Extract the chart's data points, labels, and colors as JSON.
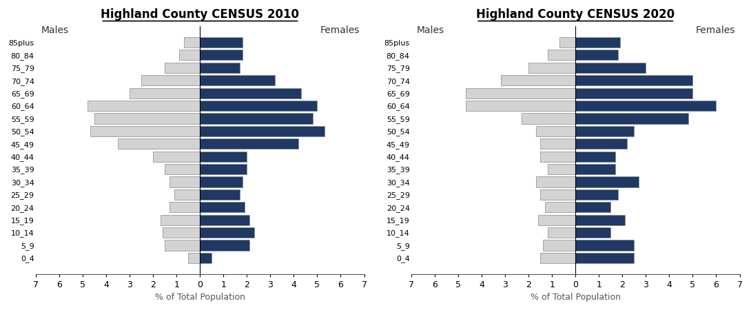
{
  "age_groups": [
    "0_4",
    "5_9",
    "10_14",
    "15_19",
    "20_24",
    "25_29",
    "30_34",
    "35_39",
    "40_44",
    "45_49",
    "50_54",
    "55_59",
    "60_64",
    "65_69",
    "70_74",
    "75_79",
    "80_84",
    "85plus"
  ],
  "chart2010": {
    "title": "Highland County CENSUS 2010",
    "males": [
      0.5,
      1.5,
      1.6,
      1.7,
      1.3,
      1.1,
      1.3,
      1.5,
      2.0,
      3.5,
      4.7,
      4.5,
      4.8,
      3.0,
      2.5,
      1.5,
      0.9,
      0.7
    ],
    "females": [
      0.5,
      2.1,
      2.3,
      2.1,
      1.9,
      1.7,
      1.8,
      2.0,
      2.0,
      4.2,
      5.3,
      4.8,
      5.0,
      4.3,
      3.2,
      1.7,
      1.8,
      1.8
    ]
  },
  "chart2020": {
    "title": "Highland County CENSUS 2020",
    "males": [
      1.5,
      1.4,
      1.2,
      1.6,
      1.3,
      1.5,
      1.7,
      1.2,
      1.5,
      1.5,
      1.7,
      2.3,
      4.7,
      4.7,
      3.2,
      2.0,
      1.2,
      0.7
    ],
    "females": [
      2.5,
      2.5,
      1.5,
      2.1,
      1.5,
      1.8,
      2.7,
      1.7,
      1.7,
      2.2,
      2.5,
      4.8,
      6.0,
      5.0,
      5.0,
      3.0,
      1.8,
      1.9
    ]
  },
  "male_color": "#d3d3d3",
  "female_color": "#1f3864",
  "bar_edge_color": "#888888",
  "bar_linewidth": 0.5,
  "xlim": 7,
  "xlabel": "% of Total Population",
  "background_color": "#ffffff",
  "title_fontsize": 12,
  "label_fontsize": 8,
  "tick_fontsize": 9,
  "xlabel_fontsize": 9,
  "gender_fontsize": 10
}
